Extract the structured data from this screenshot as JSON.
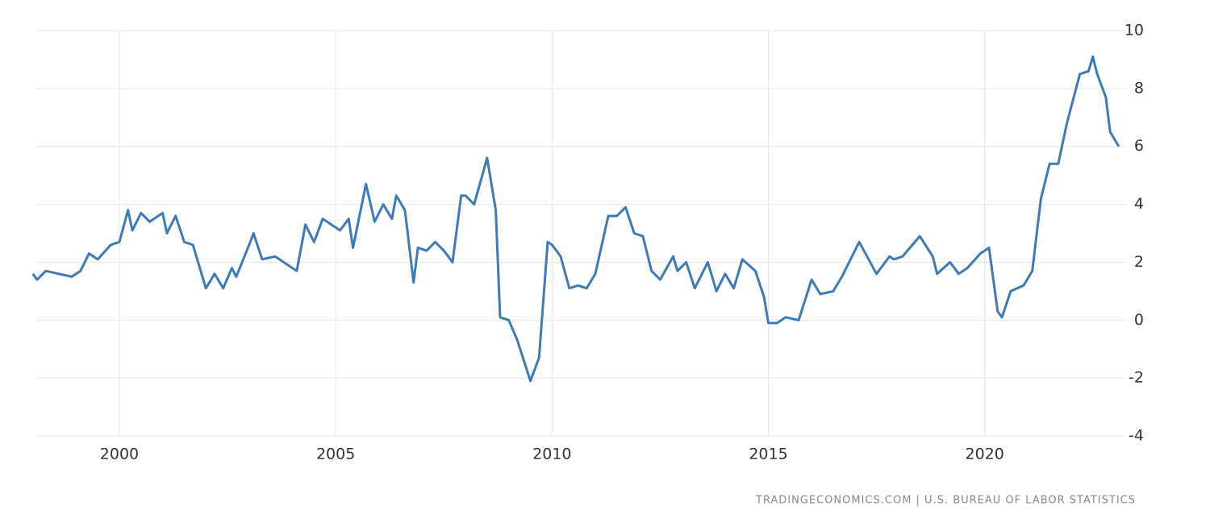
{
  "chart_data": {
    "type": "line",
    "source": "TRADINGECONOMICS.COM | U.S. BUREAU OF LABOR STATISTICS",
    "x": [
      1998.0,
      1998.1,
      1998.3,
      1998.6,
      1998.9,
      1999.1,
      1999.3,
      1999.5,
      1999.8,
      2000.0,
      2000.2,
      2000.3,
      2000.5,
      2000.7,
      2001.0,
      2001.1,
      2001.3,
      2001.5,
      2001.7,
      2001.9,
      2002.0,
      2002.2,
      2002.4,
      2002.6,
      2002.7,
      2003.0,
      2003.1,
      2003.3,
      2003.6,
      2003.9,
      2004.1,
      2004.3,
      2004.5,
      2004.7,
      2004.9,
      2005.1,
      2005.3,
      2005.4,
      2005.7,
      2005.9,
      2006.1,
      2006.3,
      2006.4,
      2006.6,
      2006.8,
      2006.9,
      2007.1,
      2007.3,
      2007.5,
      2007.7,
      2007.9,
      2008.0,
      2008.2,
      2008.5,
      2008.7,
      2008.8,
      2009.0,
      2009.2,
      2009.5,
      2009.7,
      2009.9,
      2010.0,
      2010.2,
      2010.4,
      2010.6,
      2010.8,
      2011.0,
      2011.3,
      2011.5,
      2011.7,
      2011.9,
      2012.1,
      2012.3,
      2012.5,
      2012.8,
      2012.9,
      2013.1,
      2013.3,
      2013.6,
      2013.8,
      2014.0,
      2014.2,
      2014.4,
      2014.7,
      2014.9,
      2015.0,
      2015.2,
      2015.4,
      2015.7,
      2016.0,
      2016.2,
      2016.5,
      2016.7,
      2016.9,
      2017.1,
      2017.5,
      2017.8,
      2017.9,
      2018.1,
      2018.5,
      2018.8,
      2018.9,
      2019.2,
      2019.4,
      2019.6,
      2019.9,
      2020.1,
      2020.3,
      2020.4,
      2020.6,
      2020.9,
      2021.1,
      2021.3,
      2021.5,
      2021.7,
      2021.9,
      2022.2,
      2022.4,
      2022.5,
      2022.6,
      2022.8,
      2022.9,
      2023.1
    ],
    "series": [
      {
        "color": "#3d7ab8",
        "values": [
          1.6,
          1.4,
          1.7,
          1.6,
          1.5,
          1.7,
          2.3,
          2.1,
          2.6,
          2.7,
          3.8,
          3.1,
          3.7,
          3.4,
          3.7,
          3.0,
          3.6,
          2.7,
          2.6,
          1.6,
          1.1,
          1.6,
          1.1,
          1.8,
          1.5,
          2.6,
          3.0,
          2.1,
          2.2,
          1.9,
          1.7,
          3.3,
          2.7,
          3.5,
          3.3,
          3.1,
          3.5,
          2.5,
          4.7,
          3.4,
          4.0,
          3.5,
          4.3,
          3.8,
          1.3,
          2.5,
          2.4,
          2.7,
          2.4,
          2.0,
          4.3,
          4.3,
          4.0,
          5.6,
          3.8,
          0.1,
          0.0,
          -0.7,
          -2.1,
          -1.3,
          2.7,
          2.6,
          2.2,
          1.1,
          1.2,
          1.1,
          1.6,
          3.6,
          3.6,
          3.9,
          3.0,
          2.9,
          1.7,
          1.4,
          2.2,
          1.7,
          2.0,
          1.1,
          2.0,
          1.0,
          1.6,
          1.1,
          2.1,
          1.7,
          0.8,
          -0.1,
          -0.1,
          0.1,
          0.0,
          1.4,
          0.9,
          1.0,
          1.5,
          2.1,
          2.7,
          1.6,
          2.2,
          2.1,
          2.2,
          2.9,
          2.2,
          1.6,
          2.0,
          1.6,
          1.8,
          2.3,
          2.5,
          0.3,
          0.1,
          1.0,
          1.2,
          1.7,
          4.2,
          5.4,
          5.4,
          6.8,
          8.5,
          8.6,
          9.1,
          8.5,
          7.7,
          6.5,
          6.0
        ]
      }
    ],
    "xlim": [
      1998.08,
      2023.25
    ],
    "xticks": [
      2000,
      2005,
      2010,
      2015,
      2020
    ],
    "ylim": [
      -4,
      10
    ],
    "yticks": [
      -4,
      -2,
      0,
      2,
      4,
      6,
      8,
      10
    ],
    "grid": true
  }
}
